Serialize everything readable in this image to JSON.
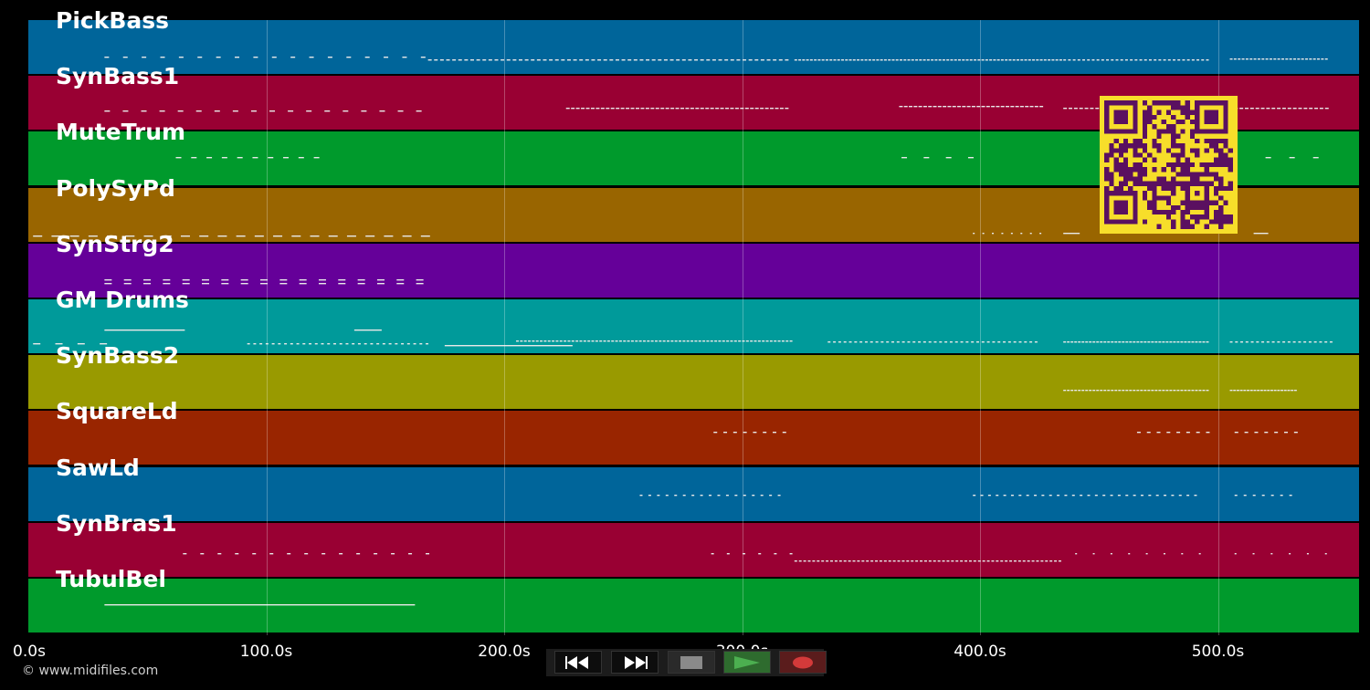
{
  "app": {
    "copyright": "© www.midifiles.com"
  },
  "timeline": {
    "duration_s": 560,
    "ticks": [
      "0.0s",
      "100.0s",
      "200.0s",
      "300.0s",
      "400.0s",
      "500.0s"
    ],
    "tick_values": [
      0,
      100,
      200,
      300,
      400,
      500
    ]
  },
  "tracks": [
    {
      "name": "PickBass",
      "color": "#00659a"
    },
    {
      "name": "SynBass1",
      "color": "#990033"
    },
    {
      "name": "MuteTrum",
      "color": "#009a2c"
    },
    {
      "name": "PolySyPd",
      "color": "#996500"
    },
    {
      "name": "SynStrg2",
      "color": "#650099"
    },
    {
      "name": "GM Drums",
      "color": "#009a9a"
    },
    {
      "name": "SynBass2",
      "color": "#999a00"
    },
    {
      "name": "SquareLd",
      "color": "#992500"
    },
    {
      "name": "SawLd",
      "color": "#00659a"
    },
    {
      "name": "SynBras1",
      "color": "#990033"
    },
    {
      "name": "TubulBel",
      "color": "#009a2c"
    }
  ],
  "transport": {
    "rewind_icon": "rewind-icon",
    "fast_forward_icon": "fast-forward-icon",
    "stop_icon": "stop-icon",
    "play_icon": "play-icon",
    "record_icon": "record-icon",
    "colors": {
      "stop": "#8a8a8a",
      "play": "#4caf50",
      "record": "#d33a3a",
      "play_bg": "#2e6b2e",
      "record_bg": "#5a1c1c"
    }
  },
  "overlay": {
    "qr_icon": "qr-code-icon",
    "qr_fg": "#5a1060",
    "qr_bg": "#f7de2a"
  }
}
